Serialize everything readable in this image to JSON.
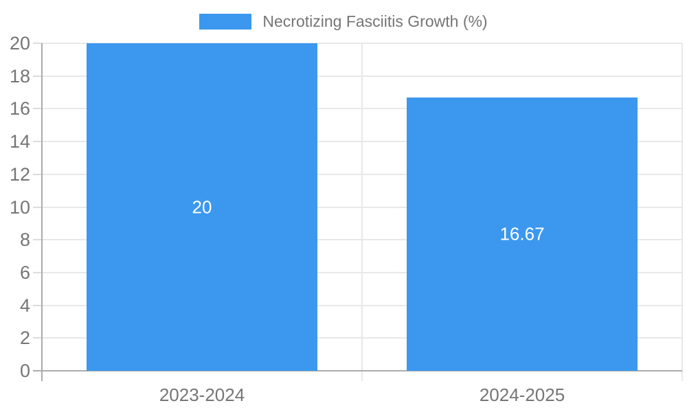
{
  "chart_data": {
    "type": "bar",
    "title": "",
    "categories": [
      "2023-2024",
      "2024-2025"
    ],
    "series": [
      {
        "name": "Necrotizing Fasciitis Growth (%)",
        "values": [
          20,
          16.67
        ]
      }
    ],
    "data_labels": [
      "20",
      "16.67"
    ],
    "y_ticks": [
      0,
      2,
      4,
      6,
      8,
      10,
      12,
      14,
      16,
      18,
      20
    ],
    "ylim": [
      0,
      20
    ],
    "xlabel": "",
    "ylabel": "",
    "grid": true,
    "legend_position": "top",
    "colors": {
      "bar": "#3B98EE",
      "grid": "#E8E8E8",
      "tick_mark": "#DCDCDC",
      "axis": "#ABABAB",
      "text": "#757575",
      "data_label": "#FFFFFF",
      "background": "#FFFFFF"
    }
  }
}
